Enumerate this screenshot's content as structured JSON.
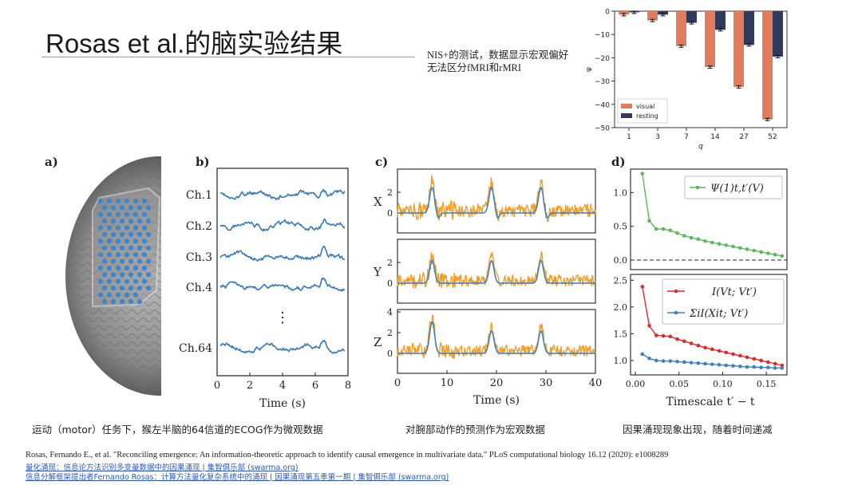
{
  "slide": {
    "title": "Rosas et al.的脑实验结果",
    "note_line1": "NIS+的测试，数据显示宏观偏好",
    "note_line2": "无法区分fMRI和rMRI"
  },
  "captions": {
    "left": "运动（motor）任务下，猴左半脑的64信道的ECOG作为微观数据",
    "middle": "对腕部动作的预测作为宏观数据",
    "right": "因果涌现现象出现，随着时间递减"
  },
  "references": {
    "citation": "Rosas, Fernando E., et al. \"Reconciling emergence: An information-theoretic approach to identify causal emergence in multivariate data.\" PLoS computational biology 16.12 (2020): e1008289",
    "link1": "量化涌现：信息论方法识别多变量数据中的因果涌现 | 集智俱乐部 (swarma.org)",
    "link2": "信息分解框架提出者Fernando Rosas：计算方法量化复杂系统中的涌现 | 因果涌现第五季第一期 | 集智俱乐部 (swarma.org)"
  },
  "panel_labels": {
    "a": "a)",
    "b": "b)",
    "c": "c)",
    "d": "d)"
  },
  "panel_b": {
    "channels": [
      "Ch.1",
      "Ch.2",
      "Ch.3",
      "Ch.4",
      "Ch.64"
    ],
    "dots": "⋮",
    "xticks": [
      "0",
      "2",
      "4",
      "6",
      "8"
    ],
    "xlabel": "Time (s)"
  },
  "panel_c": {
    "rows": [
      "X",
      "Y",
      "Z"
    ],
    "yticks": [
      [
        "0",
        "2"
      ],
      [
        "0",
        "2"
      ],
      [
        "0",
        "2",
        "4"
      ]
    ],
    "xticks": [
      "0",
      "10",
      "20",
      "30",
      "40"
    ],
    "xlabel": "Time (s)"
  },
  "panel_d": {
    "xlabel": "Timescale t′ − t",
    "xticks": [
      "0.00",
      "0.05",
      "0.10",
      "0.15"
    ],
    "top_yticks": [
      "0.0",
      "0.5",
      "1.0"
    ],
    "bottom_yticks": [
      "1.0",
      "1.5",
      "2.0",
      "2.5"
    ],
    "legend_top": "Ψ(1)t,t′(V)",
    "legend_bottom_1": "I(Vt; Vt′)",
    "legend_bottom_2": "ΣiI(Xit; Vt′)",
    "colors": {
      "psi": "#5cb85c",
      "mi": "#e0262e",
      "sum": "#3e7fc4"
    }
  },
  "chart_data": {
    "type": "bar",
    "categories": [
      "1",
      "3",
      "7",
      "14",
      "27",
      "52"
    ],
    "xlabel": "q",
    "ylabel": "ψ",
    "ylim": [
      -50,
      0
    ],
    "yticks": [
      "0",
      "−10",
      "−20",
      "−30",
      "−40",
      "−50"
    ],
    "legend_placement": "lower-left",
    "series": [
      {
        "name": "visual",
        "color": "#e07b5d",
        "values": [
          -1.5,
          -4,
          -15,
          -24,
          -32.5,
          -46.5
        ]
      },
      {
        "name": "resting",
        "color": "#2f3a5c",
        "values": [
          -0.5,
          -1.5,
          -5,
          -8,
          -14.5,
          -19.5
        ]
      }
    ]
  }
}
